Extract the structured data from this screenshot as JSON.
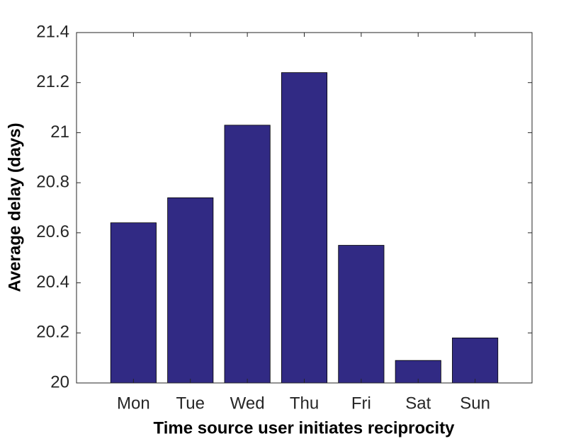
{
  "chart_data": {
    "type": "bar",
    "x_label": "Time source user initiates reciprocity",
    "y_label": "Average delay (days)",
    "categories": [
      "Mon",
      "Tue",
      "Wed",
      "Thu",
      "Fri",
      "Sat",
      "Sun"
    ],
    "values": [
      20.64,
      20.74,
      21.03,
      21.24,
      20.55,
      20.09,
      20.18
    ],
    "color": "#312a84",
    "ylim": [
      20,
      21.4
    ],
    "yticks": [
      20,
      20.2,
      20.4,
      20.6,
      20.8,
      21,
      21.2,
      21.4
    ],
    "grid": false
  }
}
